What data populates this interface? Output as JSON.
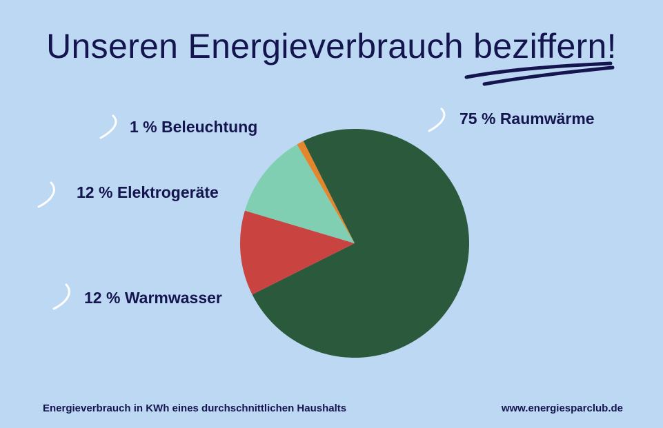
{
  "title": "Unseren Energieverbrauch beziffern!",
  "footer": {
    "caption": "Energieverbrauch in KWh eines durchschnittlichen Haushalts",
    "website": "www.energiesparclub.de"
  },
  "colors": {
    "background": "#bdd8f2",
    "text": "#14144f",
    "accent_mark": "#ffffff"
  },
  "chart_data": {
    "type": "pie",
    "title": "Unseren Energieverbrauch beziffern!",
    "slices": [
      {
        "label": "75 % Raumwärme",
        "value": 75,
        "color": "#2b593b"
      },
      {
        "label": "12 % Warmwasser",
        "value": 12,
        "color": "#c94341"
      },
      {
        "label": "12 % Elektrogeräte",
        "value": 12,
        "color": "#81cfb3"
      },
      {
        "label": "1 % Beleuchtung",
        "value": 1,
        "color": "#e5862c"
      }
    ]
  }
}
